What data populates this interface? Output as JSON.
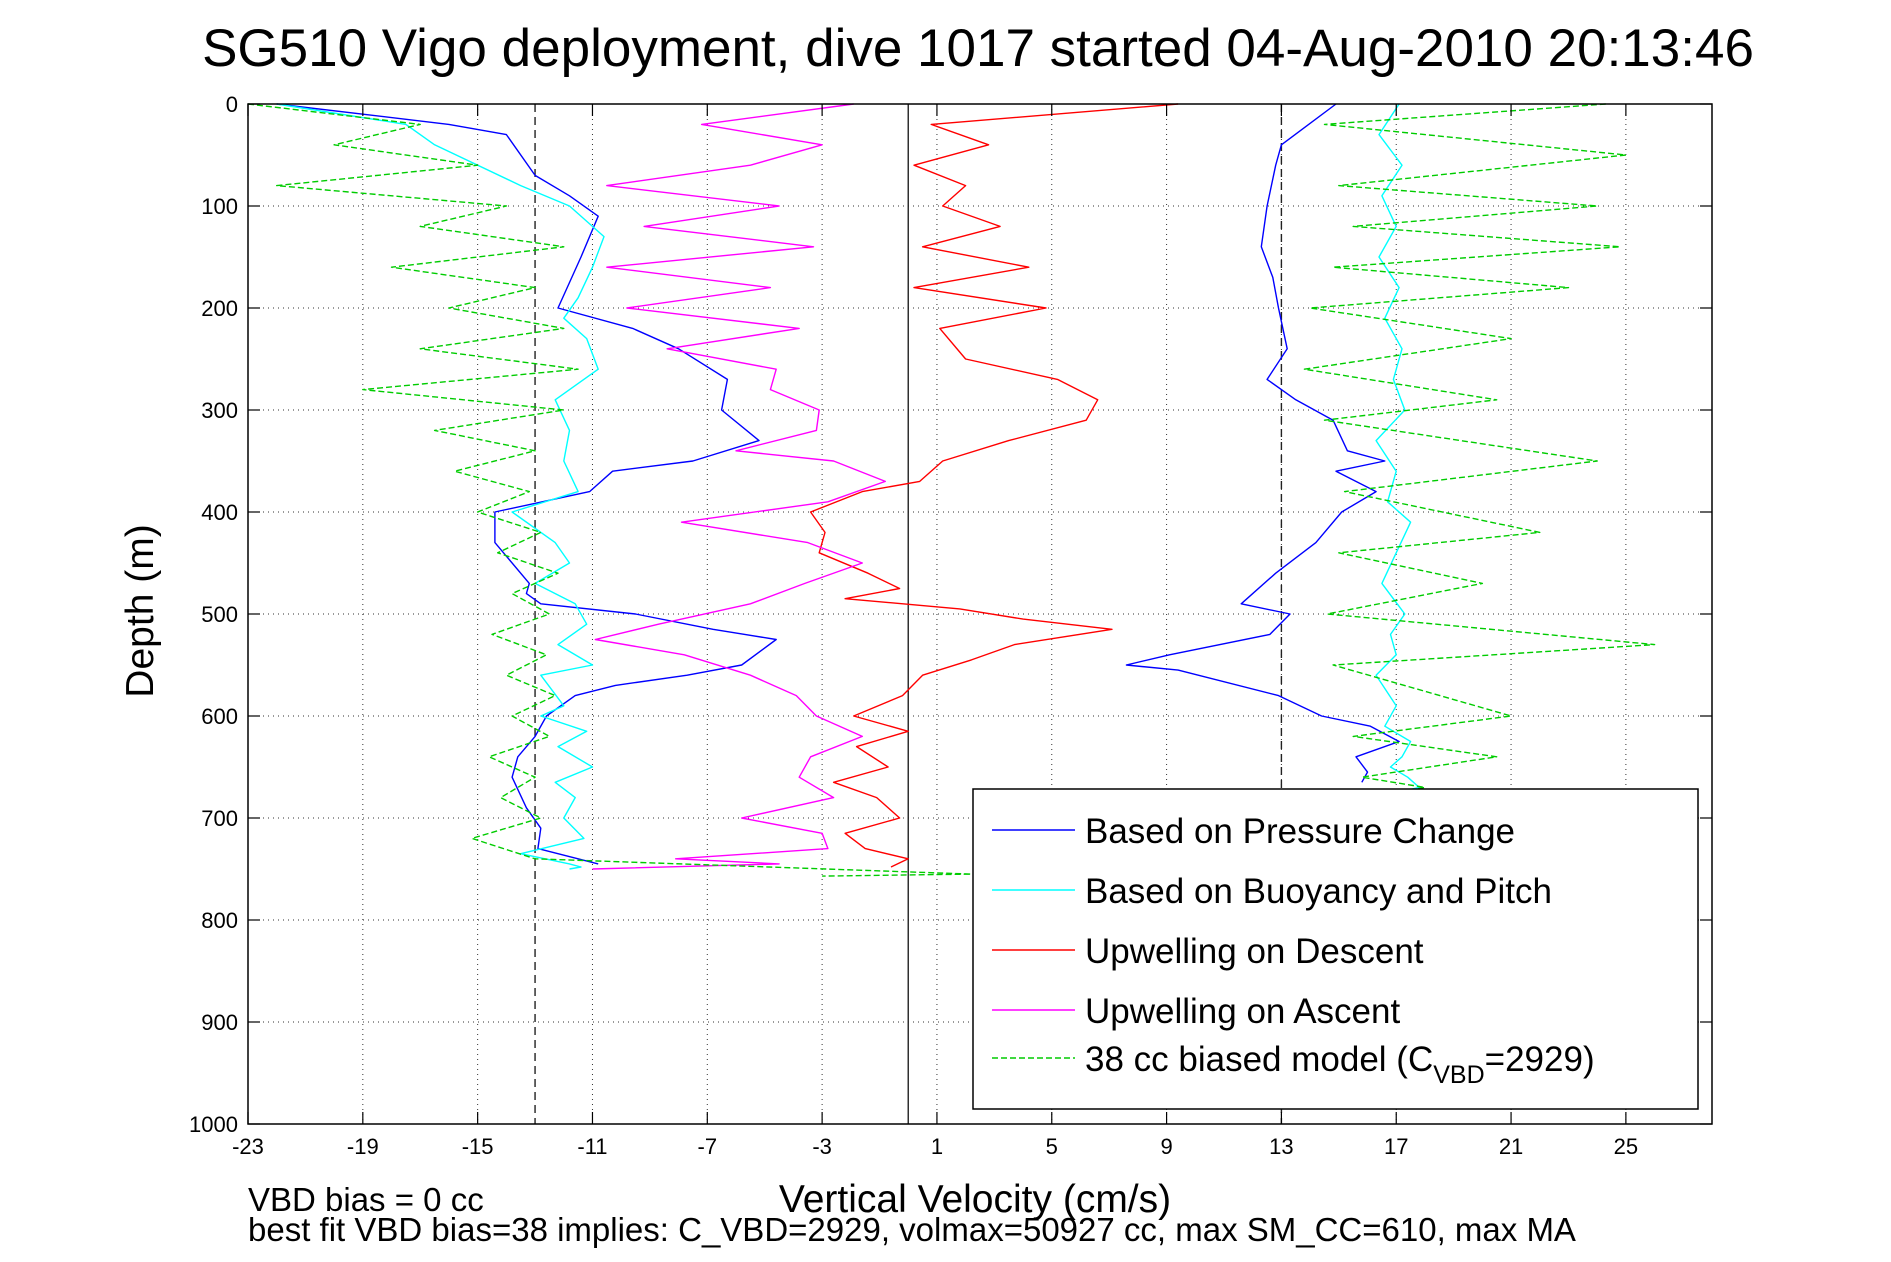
{
  "chart_data": {
    "type": "line",
    "title": "SG510 Vigo deployment, dive 1017 started 04-Aug-2010 20:13:46",
    "xlabel": "Vertical Velocity (cm/s)",
    "ylabel": "Depth (m)",
    "xlim": [
      -23,
      28
    ],
    "ylim": [
      1000,
      0
    ],
    "y_reversed": true,
    "x_ticks": [
      -23,
      -19,
      -15,
      -11,
      -7,
      -3,
      1,
      5,
      9,
      13,
      17,
      21,
      25
    ],
    "y_ticks": [
      0,
      100,
      200,
      300,
      400,
      500,
      600,
      700,
      800,
      900,
      1000
    ],
    "grid": "dotted",
    "legend_position": "lower-right",
    "reference_lines": [
      {
        "x": -13,
        "style": "dashed"
      },
      {
        "x": 0,
        "style": "solid"
      },
      {
        "x": 13,
        "style": "dashed"
      }
    ],
    "series": [
      {
        "name": "Based on Pressure Change",
        "color": "#0000ff",
        "dash": "solid",
        "segments": [
          {
            "x": [
              -22,
              -16,
              -14,
              -13,
              -11.8,
              -10.8,
              -11.4,
              -12.2,
              -9.6,
              -8,
              -6.3,
              -6.5,
              -5.2,
              -7.5,
              -10.3,
              -11.1,
              -14.4,
              -14.4,
              -13.2,
              -13.3,
              -12.8,
              -9.5,
              -6.8,
              -4.6,
              -5.8,
              -7.7,
              -10.2,
              -11.6,
              -12.6,
              -13.0,
              -13.6,
              -13.8,
              -13.3,
              -12.8,
              -12.9,
              -10.8
            ],
            "y": [
              0,
              20,
              30,
              70,
              90,
              110,
              150,
              200,
              220,
              240,
              270,
              300,
              330,
              350,
              360,
              380,
              400,
              430,
              470,
              480,
              490,
              500,
              515,
              525,
              550,
              560,
              570,
              580,
              600,
              620,
              640,
              660,
              690,
              710,
              730,
              745
            ]
          },
          {
            "x": [
              14.9,
              13.0,
              12.8,
              12.5,
              12.3,
              12.7,
              12.9,
              13.2,
              12.5,
              13.5,
              14.8,
              15.3,
              16.6,
              14.9,
              16.3,
              15.1,
              14.2,
              12.8,
              11.6,
              13.3,
              12.6,
              9.1,
              7.6,
              9.4,
              12.9,
              14.4,
              16.1,
              17.1,
              15.6,
              16.0,
              15.8
            ],
            "y": [
              0,
              40,
              60,
              100,
              140,
              170,
              200,
              240,
              270,
              290,
              310,
              340,
              350,
              360,
              380,
              400,
              430,
              460,
              490,
              500,
              520,
              540,
              550,
              555,
              580,
              600,
              610,
              625,
              640,
              655,
              665
            ]
          }
        ]
      },
      {
        "name": "Based on Buoyancy and Pitch",
        "color": "#00ffff",
        "dash": "solid",
        "segments": [
          {
            "x": [
              -22,
              -17.5,
              -16.5,
              -13.5,
              -11.8,
              -10.6,
              -11.0,
              -11.5,
              -12.0,
              -11.2,
              -10.8,
              -12.3,
              -11.8,
              -12.0,
              -11.5,
              -13.8,
              -12.3,
              -11.8,
              -13.0,
              -11.6,
              -11.2,
              -12.2,
              -11.0,
              -12.8,
              -12.0,
              -12.8,
              -11.2,
              -12.2,
              -11.0,
              -12.3,
              -11.6,
              -12.0,
              -11.3,
              -13.5,
              -11.8,
              -11.4,
              -11.8
            ],
            "y": [
              0,
              20,
              40,
              80,
              100,
              130,
              160,
              190,
              210,
              230,
              260,
              290,
              320,
              350,
              380,
              400,
              430,
              450,
              470,
              490,
              510,
              530,
              550,
              560,
              590,
              600,
              615,
              630,
              650,
              665,
              680,
              700,
              720,
              735,
              745,
              748,
              750
            ]
          },
          {
            "x": [
              17.1,
              16.4,
              17.2,
              16.5,
              17.0,
              16.4,
              17.1,
              16.6,
              17.2,
              16.9,
              17.3,
              16.3,
              17.0,
              16.7,
              17.5,
              17.0,
              16.5,
              17.3,
              16.8,
              17.0,
              16.3,
              17.0,
              16.6,
              17.5,
              17.2,
              16.8,
              17.4,
              17.8,
              16.2
            ],
            "y": [
              0,
              30,
              60,
              90,
              120,
              150,
              180,
              210,
              240,
              270,
              300,
              330,
              360,
              390,
              410,
              440,
              470,
              500,
              520,
              540,
              560,
              590,
              610,
              625,
              640,
              650,
              660,
              670,
              680
            ]
          }
        ]
      },
      {
        "name": "Upwelling on Descent",
        "color": "#ff0000",
        "dash": "solid",
        "x": [
          9.4,
          0.8,
          2.8,
          0.2,
          2.0,
          1.2,
          3.2,
          0.5,
          4.2,
          0.2,
          4.8,
          1.1,
          2.0,
          5.2,
          6.6,
          6.2,
          3.5,
          1.2,
          0.4,
          -1.6,
          -3.4,
          -2.9,
          -3.1,
          -1.4,
          -0.3,
          -2.2,
          1.8,
          4.0,
          7.1,
          3.7,
          2.2,
          0.5,
          -0.2,
          -1.9,
          0.0,
          -1.8,
          -0.7,
          -2.6,
          -1.1,
          -0.3,
          -2.2,
          -1.5,
          0.0,
          -0.6
        ],
        "y": [
          0,
          20,
          40,
          60,
          80,
          100,
          120,
          140,
          160,
          180,
          200,
          220,
          250,
          270,
          290,
          310,
          330,
          350,
          370,
          380,
          400,
          420,
          440,
          460,
          475,
          485,
          495,
          505,
          515,
          530,
          545,
          560,
          580,
          600,
          615,
          630,
          650,
          665,
          680,
          700,
          715,
          730,
          740,
          748
        ]
      },
      {
        "name": "Upwelling on Ascent",
        "color": "#ff00ff",
        "dash": "solid",
        "x": [
          -1.9,
          -7.2,
          -3.0,
          -5.5,
          -10.5,
          -4.5,
          -9.2,
          -3.3,
          -10.5,
          -4.8,
          -9.8,
          -3.8,
          -8.4,
          -4.6,
          -4.8,
          -3.1,
          -3.2,
          -6.0,
          -2.6,
          -0.8,
          -2.8,
          -7.9,
          -3.5,
          -1.6,
          -3.6,
          -5.5,
          -8.7,
          -10.9,
          -7.8,
          -5.5,
          -3.9,
          -3.2,
          -1.6,
          -3.4,
          -3.8,
          -2.6,
          -5.8,
          -3.0,
          -2.8,
          -8.1,
          -4.5,
          -11.0
        ],
        "y": [
          0,
          20,
          40,
          60,
          80,
          100,
          120,
          140,
          160,
          180,
          200,
          220,
          240,
          260,
          280,
          300,
          320,
          340,
          350,
          370,
          390,
          410,
          430,
          450,
          470,
          490,
          510,
          525,
          540,
          560,
          580,
          600,
          620,
          640,
          660,
          680,
          700,
          715,
          730,
          740,
          745,
          750
        ]
      },
      {
        "name": "38 cc biased model (C_VBD=2929)",
        "color": "#00cc00",
        "dash": "dashed",
        "segments": [
          {
            "x": [
              -23,
              -17,
              -20,
              -15,
              -22,
              -14,
              -17,
              -12,
              -18,
              -13,
              -16,
              -12,
              -17,
              -11.5,
              -19,
              -12,
              -16.5,
              -13,
              -15.8,
              -13.2,
              -15.0,
              -12.8,
              -14.3,
              -12.2,
              -13.8,
              -12.5,
              -14.5,
              -12.6,
              -14.0,
              -12.3,
              -13.8,
              -12.5,
              -14.6,
              -13.0,
              -14.2,
              -12.8,
              -15.2,
              -13.0,
              2.2,
              -3.0
            ],
            "y": [
              0,
              20,
              40,
              60,
              80,
              100,
              120,
              140,
              160,
              180,
              200,
              220,
              240,
              260,
              280,
              300,
              320,
              340,
              360,
              380,
              400,
              420,
              440,
              460,
              480,
              500,
              520,
              540,
              560,
              580,
              600,
              620,
              640,
              660,
              680,
              700,
              720,
              740,
              755,
              757
            ]
          },
          {
            "x": [
              24.3,
              14.5,
              25.0,
              15.0,
              24.0,
              15.5,
              24.8,
              14.8,
              23.0,
              14.0,
              21.0,
              13.8,
              20.5,
              14.5,
              24.0,
              15.2,
              22.0,
              15.0,
              20.0,
              14.6,
              26.0,
              14.8,
              21.0,
              15.5,
              20.5,
              15.8,
              18.0,
              16.0
            ],
            "y": [
              0,
              20,
              50,
              80,
              100,
              120,
              140,
              160,
              180,
              200,
              230,
              260,
              290,
              310,
              350,
              380,
              420,
              440,
              470,
              500,
              530,
              550,
              600,
              620,
              640,
              660,
              670,
              680
            ]
          }
        ]
      }
    ],
    "legend": [
      {
        "label": "Based on Pressure Change",
        "color": "#0000ff",
        "dash": "solid"
      },
      {
        "label": "Based on Buoyancy and Pitch",
        "color": "#00ffff",
        "dash": "solid"
      },
      {
        "label": "Upwelling on Descent",
        "color": "#ff0000",
        "dash": "solid"
      },
      {
        "label": "Upwelling on Ascent",
        "color": "#ff00ff",
        "dash": "solid"
      },
      {
        "label_main": "38 cc biased model (C",
        "label_sub": "VBD",
        "label_tail": "=2929)",
        "color": "#00cc00",
        "dash": "dashed"
      }
    ]
  },
  "footer": {
    "line1": "VBD bias = 0 cc",
    "line2": "best fit VBD bias=38 implies: C_VBD=2929, volmax=50927 cc, max SM_CC=610, max MA"
  }
}
